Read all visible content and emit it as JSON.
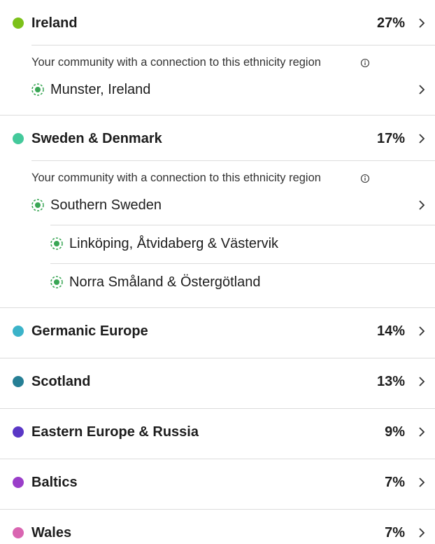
{
  "regions": [
    {
      "name": "Ireland",
      "percent": "27%",
      "color": "#7cc11a",
      "community": {
        "note": "Your community with a connection to this ethnicity region",
        "places": [
          {
            "name": "Munster, Ireland"
          }
        ]
      }
    },
    {
      "name": "Sweden & Denmark",
      "percent": "17%",
      "color": "#44c99b",
      "community": {
        "note": "Your community with a connection to this ethnicity region",
        "places": [
          {
            "name": "Southern Sweden",
            "children": [
              "Linköping, Åtvidaberg & Västervik",
              "Norra Småland & Östergötland"
            ]
          }
        ]
      }
    },
    {
      "name": "Germanic Europe",
      "percent": "14%",
      "color": "#3bb3c9"
    },
    {
      "name": "Scotland",
      "percent": "13%",
      "color": "#267f95"
    },
    {
      "name": "Eastern Europe & Russia",
      "percent": "9%",
      "color": "#5a37c6"
    },
    {
      "name": "Baltics",
      "percent": "7%",
      "color": "#9a3ec9"
    },
    {
      "name": "Wales",
      "percent": "7%",
      "color": "#d965b1"
    }
  ]
}
